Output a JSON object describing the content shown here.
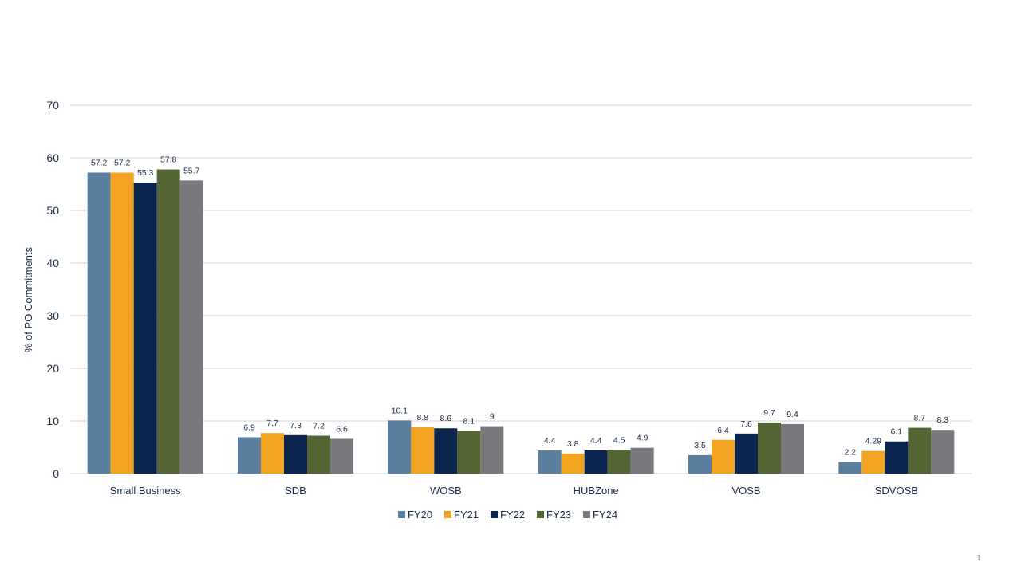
{
  "chart_data": {
    "type": "bar",
    "ylabel": "% of PO Commitments",
    "xlabel": "",
    "ylim": [
      0,
      70
    ],
    "yticks": [
      0,
      10,
      20,
      30,
      40,
      50,
      60,
      70
    ],
    "grid": true,
    "legend_position": "bottom",
    "categories": [
      "Small Business",
      "SDB",
      "WOSB",
      "HUBZone",
      "VOSB",
      "SDVOSB"
    ],
    "series": [
      {
        "name": "FY20",
        "color": "#5b7f9e",
        "values": [
          57.2,
          6.9,
          10.1,
          4.4,
          3.5,
          2.2
        ],
        "labels": [
          "57.2",
          "6.9",
          "10.1",
          "4.4",
          "3.5",
          "2.2"
        ]
      },
      {
        "name": "FY21",
        "color": "#f2a322",
        "values": [
          57.2,
          7.7,
          8.8,
          3.8,
          6.4,
          4.29
        ],
        "labels": [
          "57.2",
          "7.7",
          "8.8",
          "3.8",
          "6.4",
          "4.29"
        ]
      },
      {
        "name": "FY22",
        "color": "#0b2550",
        "values": [
          55.3,
          7.3,
          8.6,
          4.4,
          7.6,
          6.1
        ],
        "labels": [
          "55.3",
          "7.3",
          "8.6",
          "4.4",
          "7.6",
          "6.1"
        ]
      },
      {
        "name": "FY23",
        "color": "#536532",
        "values": [
          57.8,
          7.2,
          8.1,
          4.5,
          9.7,
          8.7
        ],
        "labels": [
          "57.8",
          "7.2",
          "8.1",
          "4.5",
          "9.7",
          "8.7"
        ]
      },
      {
        "name": "FY24",
        "color": "#79797e",
        "values": [
          55.7,
          6.6,
          9,
          4.9,
          9.4,
          8.3
        ],
        "labels": [
          "55.7",
          "6.6",
          "9",
          "4.9",
          "9.4",
          "8.3"
        ]
      }
    ]
  },
  "slide": {
    "page_number": "1"
  }
}
